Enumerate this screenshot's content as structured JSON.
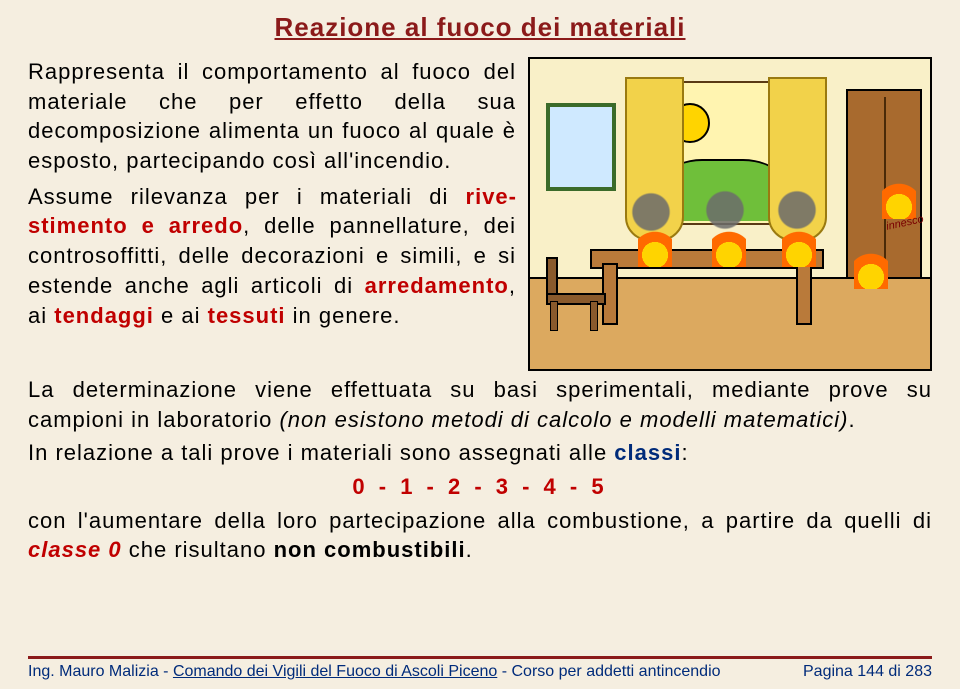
{
  "title_color": "#8b1a1a",
  "title": "Reazione al fuoco dei materiali",
  "para1": "Rappresenta il comportamento al fuoco del materiale che per effetto della sua decomposizione alimenta un fuoco al quale è esposto, partecipando così all'incendio.",
  "para2_a": "Assume rilevanza per i materiali di ",
  "para2_em1": "rive­stimento e arredo",
  "para2_b": ", delle pannellature, dei controsoffitti, delle decorazioni e si­mili, e si estende anche agli articoli di ",
  "para2_em2": "arredamento",
  "para2_c": ", ai ",
  "para2_em3": "tendaggi",
  "para2_d": " e ai ",
  "para2_em4": "tessuti",
  "para2_e": " in genere.",
  "para3_a": "La determinazione viene effettuata su basi sperimentali, mediante prove su campioni in laboratorio ",
  "para3_it": "(non esistono metodi di calcolo e modelli matematici)",
  "para3_b": ".",
  "para4_a": "In relazione a tali prove i materiali sono assegnati alle ",
  "para4_em": "classi",
  "para4_b": ":",
  "classes_line": "0 - 1 - 2 - 3 - 4 - 5",
  "para5_a": "con l'aumentare della loro partecipazione alla combustione, a partire da quelli di ",
  "para5_em": "classe 0",
  "para5_b": " che risultano ",
  "para5_strong": "non combustibili",
  "para5_c": ".",
  "footer_left_a": "Ing. Mauro Malizia - ",
  "footer_link": "Comando dei Vigili del Fuoco di Ascoli Piceno",
  "footer_left_b": " - Corso per addetti antincendio",
  "footer_right": "Pagina 144 di 283",
  "illus_label": "innesco"
}
